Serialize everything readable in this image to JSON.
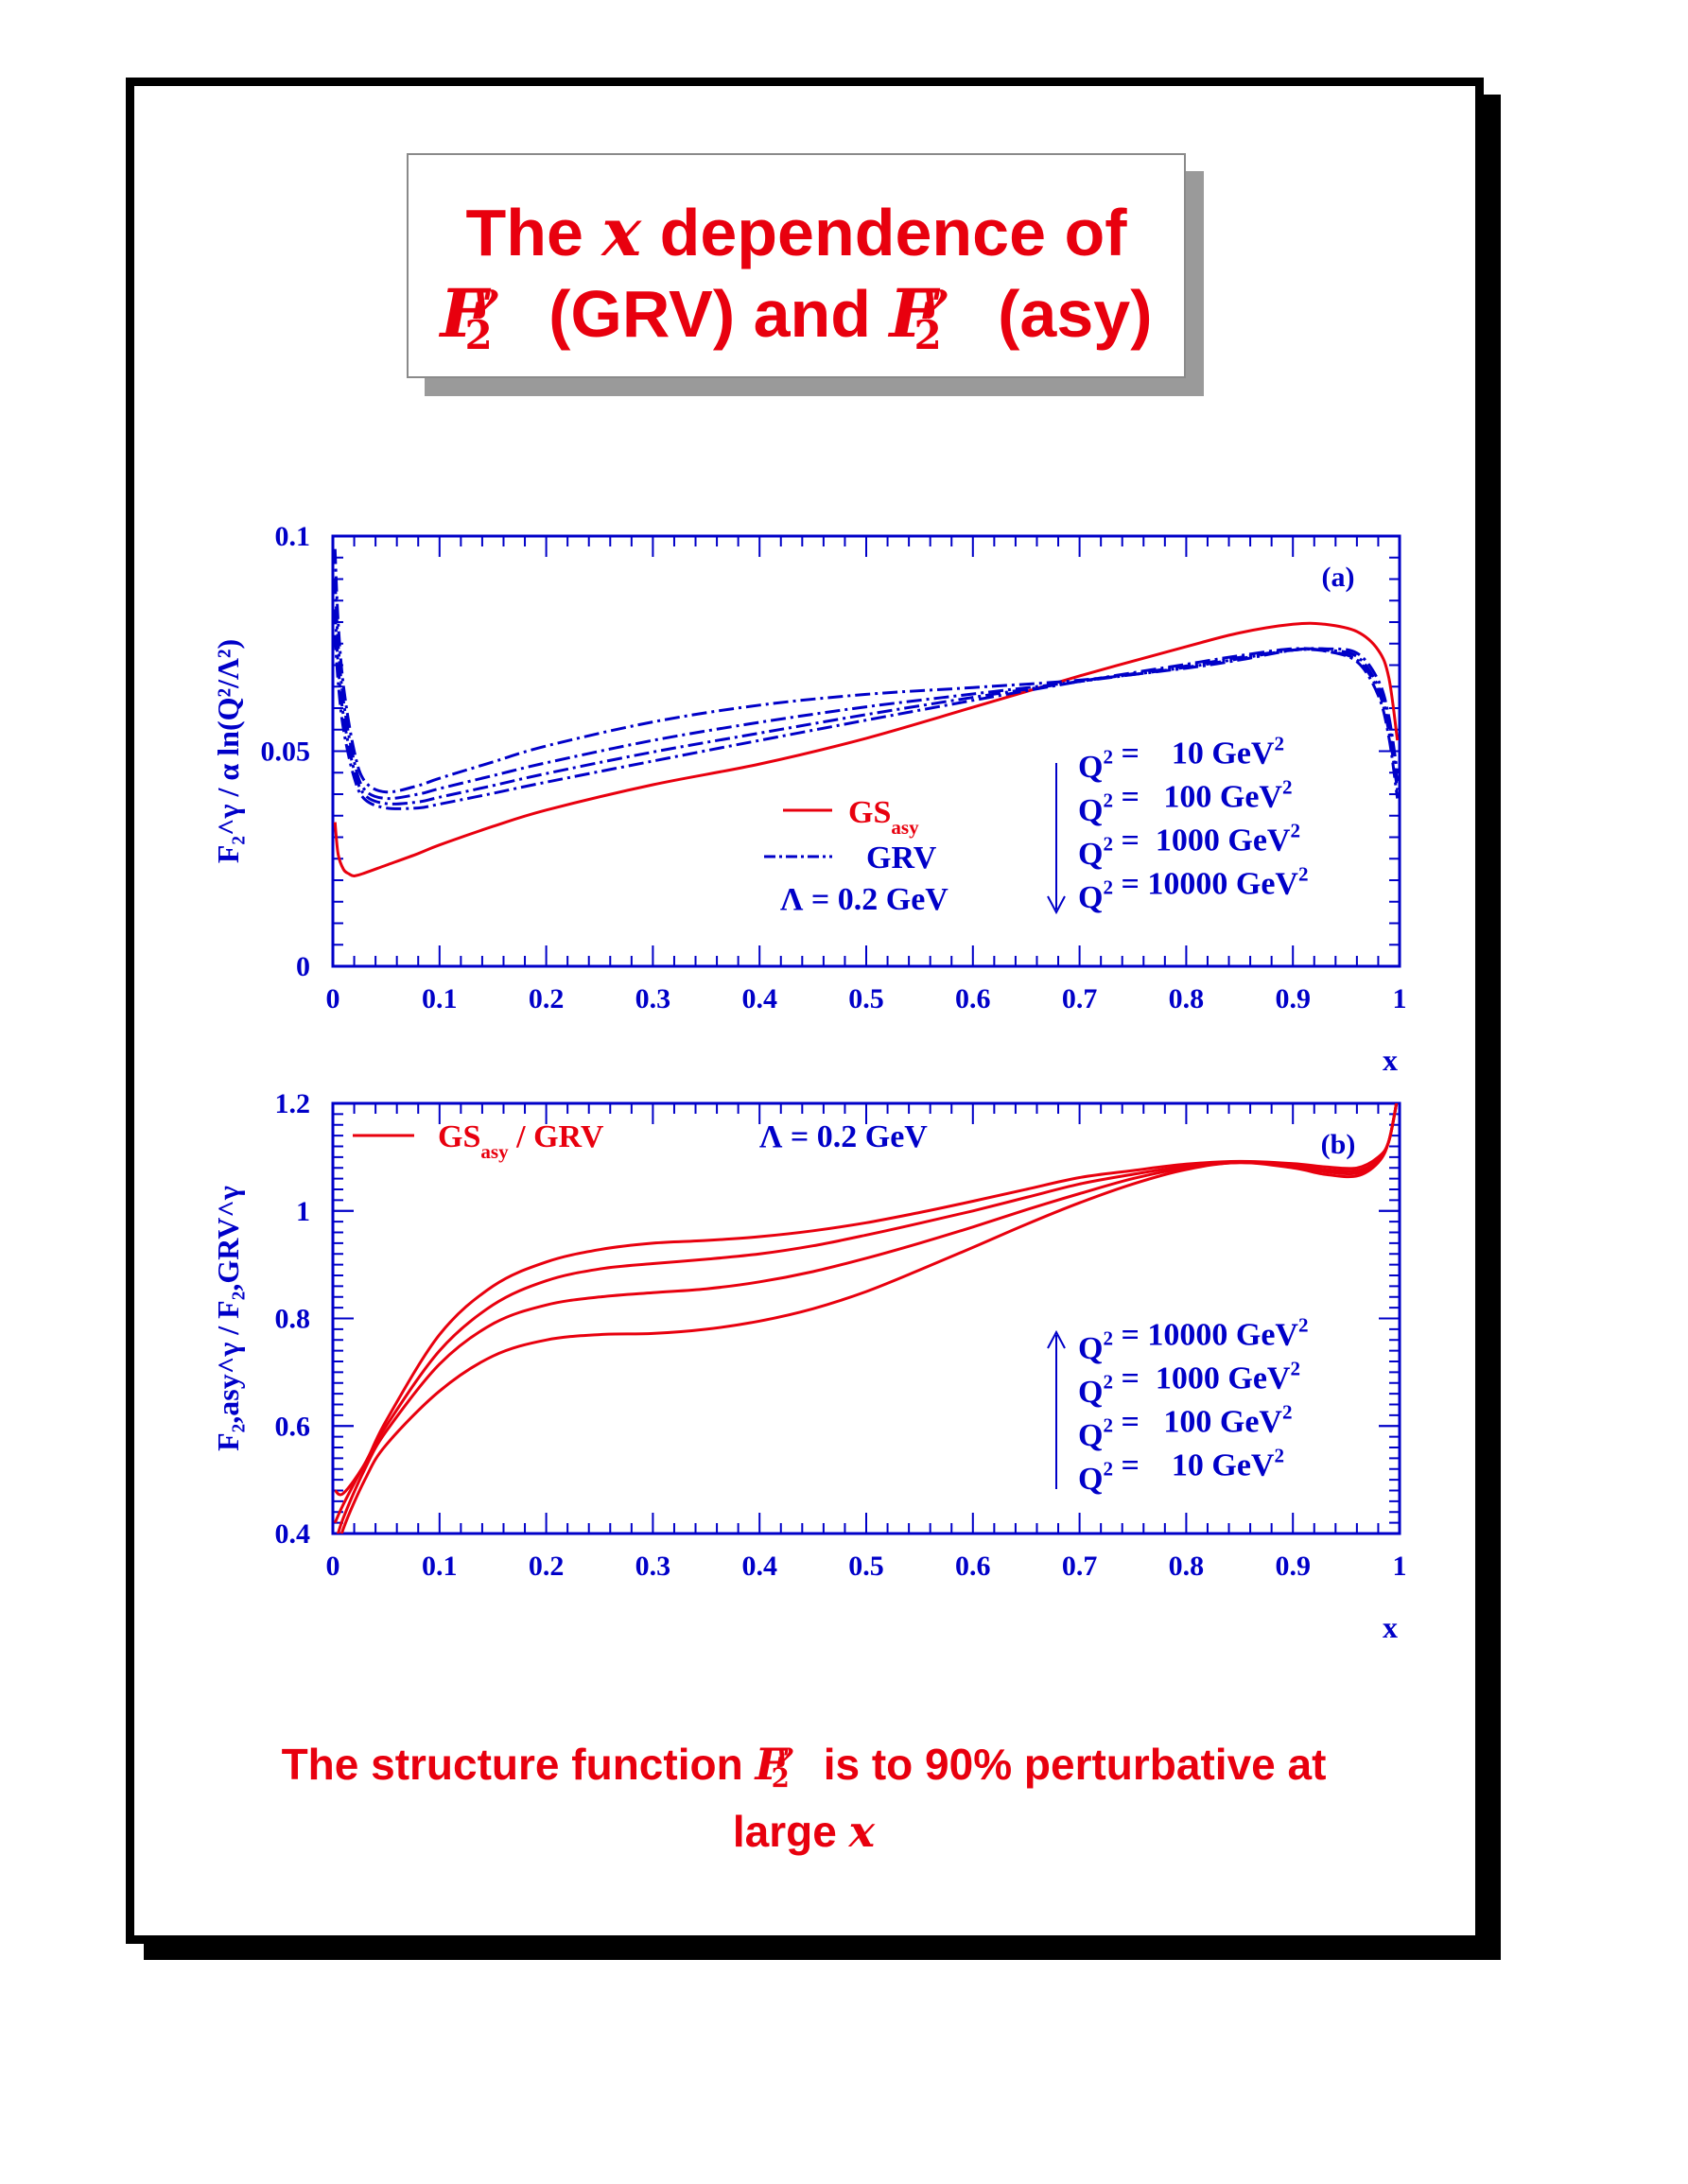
{
  "title": {
    "line1_pre": "The",
    "line1_var": "x",
    "line1_post": "dependence of",
    "f_symbol": "F",
    "f_sup": "γ",
    "f_sub": "2",
    "line2_grv": "(GRV) and",
    "line2_asy": "(asy)"
  },
  "caption": {
    "pre": "The structure function",
    "post": "is to 90% perturbative at",
    "line2_pre": "large",
    "line2_var": "x"
  },
  "colors": {
    "red": "#e8000e",
    "blue": "#0000c8",
    "frame": "#000000",
    "shadow": "#9a9a9a"
  },
  "chart_data": [
    {
      "type": "line",
      "panel_label": "(a)",
      "xlabel": "x",
      "ylabel": "F₂^γ / α ln(Q²/Λ²)",
      "xlim": [
        0,
        1
      ],
      "ylim": [
        0,
        0.1
      ],
      "xticks": [
        "0",
        "0.1",
        "0.2",
        "0.3",
        "0.4",
        "0.5",
        "0.6",
        "0.7",
        "0.8",
        "0.9",
        "1"
      ],
      "yticks": [
        "0",
        "0.05",
        "0.1"
      ],
      "legend": [
        {
          "label": "GS",
          "sub": "asy",
          "style": "solid",
          "color": "#e8000e"
        },
        {
          "label": "GRV",
          "sub": "",
          "style": "dash-dot",
          "color": "#0000c8"
        }
      ],
      "lambda_label": "Λ = 0.2 GeV",
      "q2_labels": [
        "Q² =    10 GeV²",
        "Q² =   100 GeV²",
        "Q² =  1000 GeV²",
        "Q² = 10000 GeV²"
      ],
      "q2_arrow": "down",
      "series": [
        {
          "name": "GS asy",
          "color": "#e8000e",
          "style": "solid",
          "x": [
            0.002,
            0.005,
            0.01,
            0.015,
            0.02,
            0.03,
            0.05,
            0.08,
            0.1,
            0.15,
            0.2,
            0.3,
            0.4,
            0.5,
            0.6,
            0.7,
            0.8,
            0.85,
            0.9,
            0.93,
            0.96,
            0.98,
            0.99,
            0.998
          ],
          "y": [
            0.0335,
            0.026,
            0.0225,
            0.0215,
            0.021,
            0.0217,
            0.0235,
            0.0262,
            0.0282,
            0.0325,
            0.0363,
            0.0422,
            0.047,
            0.053,
            0.0602,
            0.0675,
            0.0743,
            0.0775,
            0.0795,
            0.0795,
            0.0778,
            0.0735,
            0.067,
            0.0525
          ]
        },
        {
          "name": "GRV Q2=10",
          "color": "#0000c8",
          "style": "dash-dot",
          "x": [
            0.002,
            0.005,
            0.01,
            0.02,
            0.03,
            0.05,
            0.08,
            0.1,
            0.15,
            0.2,
            0.3,
            0.4,
            0.5,
            0.6,
            0.7,
            0.8,
            0.85,
            0.9,
            0.93,
            0.96,
            0.98,
            0.99,
            0.998
          ],
          "y": [
            0.097,
            0.08,
            0.065,
            0.05,
            0.043,
            0.0405,
            0.042,
            0.0437,
            0.0475,
            0.0512,
            0.0568,
            0.0607,
            0.0632,
            0.0648,
            0.0665,
            0.0693,
            0.0712,
            0.0735,
            0.0738,
            0.0728,
            0.0665,
            0.058,
            0.045
          ]
        },
        {
          "name": "GRV Q2=100",
          "color": "#0000c8",
          "style": "dash-dot",
          "x": [
            0.002,
            0.005,
            0.01,
            0.02,
            0.03,
            0.05,
            0.08,
            0.1,
            0.15,
            0.2,
            0.3,
            0.4,
            0.5,
            0.6,
            0.7,
            0.8,
            0.85,
            0.9,
            0.93,
            0.96,
            0.98,
            0.99,
            0.998
          ],
          "y": [
            0.09,
            0.075,
            0.0615,
            0.0475,
            0.041,
            0.039,
            0.04,
            0.0413,
            0.0443,
            0.0473,
            0.0525,
            0.0567,
            0.0603,
            0.0633,
            0.0662,
            0.0695,
            0.0715,
            0.0735,
            0.0735,
            0.072,
            0.065,
            0.056,
            0.043
          ]
        },
        {
          "name": "GRV Q2=1000",
          "color": "#0000c8",
          "style": "dash-dot",
          "x": [
            0.002,
            0.005,
            0.01,
            0.02,
            0.03,
            0.05,
            0.08,
            0.1,
            0.15,
            0.2,
            0.3,
            0.4,
            0.5,
            0.6,
            0.7,
            0.8,
            0.85,
            0.9,
            0.93,
            0.96,
            0.98,
            0.99,
            0.998
          ],
          "y": [
            0.083,
            0.07,
            0.058,
            0.0455,
            0.0398,
            0.0378,
            0.0382,
            0.0393,
            0.042,
            0.0448,
            0.0498,
            0.0542,
            0.0585,
            0.0625,
            0.0662,
            0.0698,
            0.0718,
            0.0735,
            0.0733,
            0.0712,
            0.064,
            0.0545,
            0.041
          ]
        },
        {
          "name": "GRV Q2=10000",
          "color": "#0000c8",
          "style": "dash-dot",
          "x": [
            0.002,
            0.005,
            0.01,
            0.02,
            0.03,
            0.05,
            0.08,
            0.1,
            0.15,
            0.2,
            0.3,
            0.4,
            0.5,
            0.6,
            0.7,
            0.8,
            0.85,
            0.9,
            0.93,
            0.96,
            0.98,
            0.99,
            0.998
          ],
          "y": [
            0.077,
            0.066,
            0.055,
            0.0438,
            0.0388,
            0.0368,
            0.0368,
            0.0377,
            0.0402,
            0.0428,
            0.0477,
            0.0525,
            0.0572,
            0.0618,
            0.0662,
            0.0702,
            0.0722,
            0.0738,
            0.0733,
            0.0708,
            0.063,
            0.0532,
            0.039
          ]
        }
      ]
    },
    {
      "type": "line",
      "panel_label": "(b)",
      "xlabel": "x",
      "ylabel": "F₂,asy^γ / F₂,GRV^γ",
      "xlim": [
        0,
        1
      ],
      "ylim": [
        0.4,
        1.2
      ],
      "xticks": [
        "0",
        "0.1",
        "0.2",
        "0.3",
        "0.4",
        "0.5",
        "0.6",
        "0.7",
        "0.8",
        "0.9",
        "1"
      ],
      "yticks": [
        "0.4",
        "0.6",
        "0.8",
        "1",
        "1.2"
      ],
      "legend": [
        {
          "label": "GS",
          "sub": "asy",
          "suffix": " / GRV",
          "style": "solid",
          "color": "#e8000e"
        }
      ],
      "lambda_label": "Λ = 0.2 GeV",
      "q2_labels": [
        "Q² = 10000 GeV²",
        "Q² =  1000 GeV²",
        "Q² =   100 GeV²",
        "Q² =    10 GeV²"
      ],
      "q2_arrow": "up",
      "series": [
        {
          "name": "Q2=10",
          "color": "#e8000e",
          "style": "solid",
          "x": [
            0.002,
            0.01,
            0.03,
            0.05,
            0.1,
            0.15,
            0.2,
            0.25,
            0.3,
            0.35,
            0.4,
            0.45,
            0.5,
            0.55,
            0.6,
            0.65,
            0.7,
            0.75,
            0.8,
            0.85,
            0.9,
            0.93,
            0.96,
            0.98,
            0.99,
            0.998
          ],
          "y": [
            0.35,
            0.41,
            0.5,
            0.565,
            0.665,
            0.73,
            0.76,
            0.77,
            0.772,
            0.78,
            0.795,
            0.818,
            0.85,
            0.89,
            0.932,
            0.975,
            1.015,
            1.05,
            1.077,
            1.09,
            1.08,
            1.068,
            1.065,
            1.09,
            1.13,
            1.21
          ]
        },
        {
          "name": "Q2=100",
          "color": "#e8000e",
          "style": "solid",
          "x": [
            0.002,
            0.01,
            0.03,
            0.05,
            0.1,
            0.15,
            0.2,
            0.25,
            0.3,
            0.35,
            0.4,
            0.45,
            0.5,
            0.55,
            0.6,
            0.65,
            0.7,
            0.75,
            0.8,
            0.85,
            0.9,
            0.93,
            0.96,
            0.98,
            0.99,
            0.998
          ],
          "y": [
            0.38,
            0.43,
            0.52,
            0.59,
            0.715,
            0.79,
            0.825,
            0.84,
            0.848,
            0.855,
            0.868,
            0.887,
            0.912,
            0.94,
            0.97,
            1.002,
            1.032,
            1.06,
            1.08,
            1.09,
            1.083,
            1.073,
            1.07,
            1.092,
            1.13,
            1.21
          ]
        },
        {
          "name": "Q2=1000",
          "color": "#e8000e",
          "style": "solid",
          "x": [
            0.002,
            0.01,
            0.03,
            0.05,
            0.1,
            0.15,
            0.2,
            0.25,
            0.3,
            0.35,
            0.4,
            0.45,
            0.5,
            0.55,
            0.6,
            0.65,
            0.7,
            0.75,
            0.8,
            0.85,
            0.9,
            0.93,
            0.96,
            0.98,
            0.99,
            0.998
          ],
          "y": [
            0.42,
            0.455,
            0.53,
            0.6,
            0.74,
            0.825,
            0.87,
            0.892,
            0.902,
            0.91,
            0.92,
            0.935,
            0.955,
            0.977,
            1.0,
            1.025,
            1.05,
            1.068,
            1.083,
            1.09,
            1.085,
            1.077,
            1.075,
            1.095,
            1.13,
            1.21
          ]
        },
        {
          "name": "Q2=10000",
          "color": "#e8000e",
          "style": "solid",
          "x": [
            0.002,
            0.01,
            0.03,
            0.05,
            0.1,
            0.15,
            0.2,
            0.25,
            0.3,
            0.35,
            0.4,
            0.45,
            0.5,
            0.55,
            0.6,
            0.65,
            0.7,
            0.75,
            0.8,
            0.85,
            0.9,
            0.93,
            0.96,
            0.98,
            0.99,
            0.998
          ],
          "y": [
            0.48,
            0.475,
            0.53,
            0.61,
            0.77,
            0.86,
            0.905,
            0.928,
            0.94,
            0.945,
            0.952,
            0.963,
            0.978,
            0.997,
            1.018,
            1.04,
            1.062,
            1.075,
            1.087,
            1.092,
            1.088,
            1.082,
            1.08,
            1.1,
            1.13,
            1.21
          ]
        }
      ]
    }
  ]
}
